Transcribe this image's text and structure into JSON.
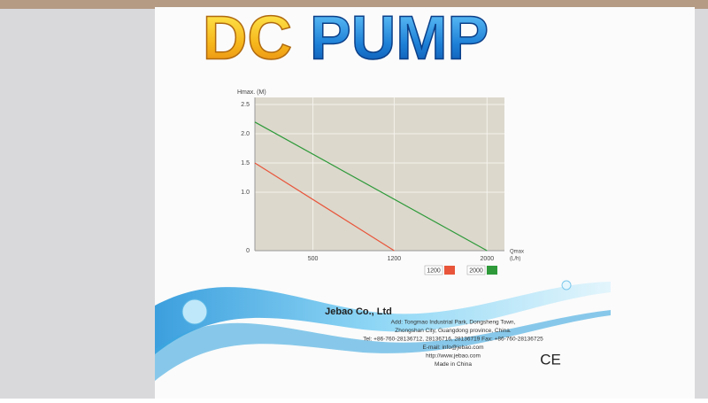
{
  "product": {
    "words": [
      "DC",
      "PUMP"
    ]
  },
  "chart_data": {
    "type": "line",
    "ylabel": "Hmax. (M)",
    "xlabel": "Qmax",
    "xunit": "(L/h)",
    "xlim": [
      0,
      2150
    ],
    "ylim": [
      0,
      2.5
    ],
    "xticks": [
      500,
      1200,
      2000
    ],
    "yticks": [
      0,
      {
        "value": 1,
        "label": "1.0"
      },
      {
        "value": 1.5,
        "label": "1.5"
      },
      {
        "value": 2,
        "label": "2.0"
      },
      {
        "value": 2.5,
        "label": "2.5"
      }
    ],
    "grid": true,
    "series": [
      {
        "name": "1200",
        "color": "#e8553a",
        "x": [
          0,
          1200
        ],
        "values": [
          1.5,
          0
        ]
      },
      {
        "name": "2000",
        "color": "#2e9a3a",
        "x": [
          0,
          2000
        ],
        "values": [
          2.2,
          0
        ]
      }
    ]
  },
  "company": {
    "name": "Jebao  Co., Ltd",
    "lines": [
      "Add: Tongmao Industrial Park, Dongsheng Town,",
      "Zhongshan City, Guangdong province, China.",
      "Tel: +86-760-28136712, 28136716, 28136719  Fax: +86-760-28136725",
      "E-mail: info@jebao.com",
      "http://www.jebao.com",
      "Made in China"
    ],
    "mark": "CE"
  }
}
